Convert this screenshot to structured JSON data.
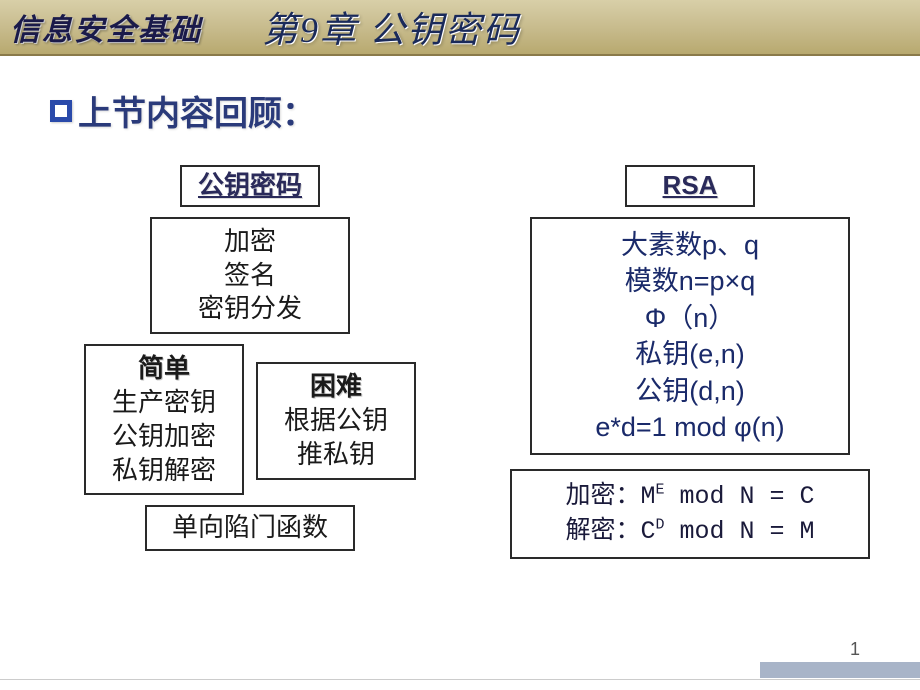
{
  "header": {
    "course": "信息安全基础",
    "chapter": "第9章 公钥密码"
  },
  "section_title": "上节内容回顾：",
  "left": {
    "title": "公钥密码",
    "ops": [
      "加密",
      "签名",
      "密钥分发"
    ],
    "easy": {
      "label": "简单",
      "items": [
        "生产密钥",
        "公钥加密",
        "私钥解密"
      ]
    },
    "hard": {
      "label": "困难",
      "items": [
        "根据公钥",
        "推私钥"
      ]
    },
    "trapdoor": "单向陷门函数"
  },
  "right": {
    "title": "RSA",
    "main": [
      "大素数p、q",
      "模数n=p×q",
      "Φ（n）",
      "私钥(e,n)",
      "公钥(d,n)",
      "e*d=1 mod φ(n)"
    ],
    "enc_label": "加密：",
    "enc_formula_base": "M",
    "enc_formula_exp": "E",
    "enc_formula_rest": " mod N = C",
    "dec_label": "解密：",
    "dec_formula_base": "C",
    "dec_formula_exp": "D",
    "dec_formula_rest": " mod N = M"
  },
  "page_number": "1",
  "colors": {
    "header_grad_top": "#d8cfa8",
    "header_grad_bot": "#b8a96f",
    "title_text": "#1a2a5a",
    "accent_blue": "#2a4aaa",
    "box_border": "#2a2a2a",
    "footer_bar": "#a8b4c8"
  }
}
